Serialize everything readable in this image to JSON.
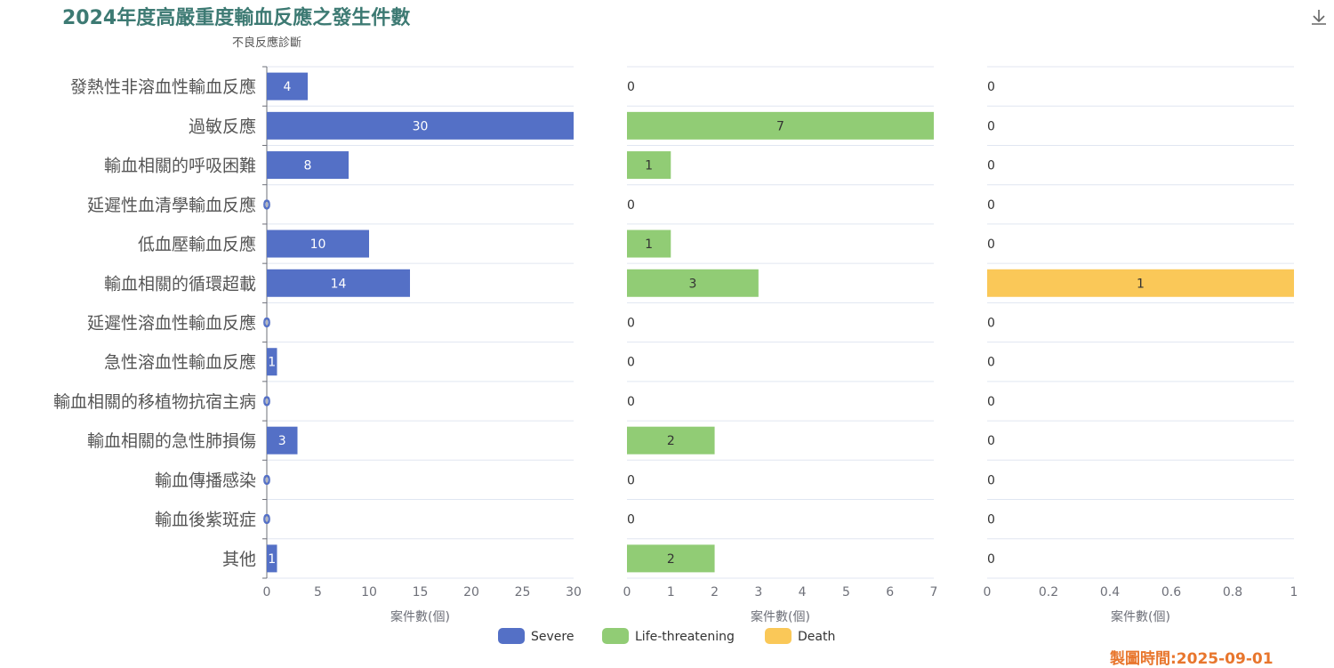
{
  "title": "2024年度高嚴重度輸血反應之發生件數",
  "footer": "製圖時間:2025-09-01",
  "chart_data": {
    "type": "bar",
    "orientation": "horizontal",
    "ylabel": "不良反應診斷",
    "categories": [
      "發熱性非溶血性輸血反應",
      "過敏反應",
      "輸血相關的呼吸困難",
      "延遲性血清學輸血反應",
      "低血壓輸血反應",
      "輸血相關的循環超載",
      "延遲性溶血性輸血反應",
      "急性溶血性輸血反應",
      "輸血相關的移植物抗宿主病",
      "輸血相關的急性肺損傷",
      "輸血傳播感染",
      "輸血後紫斑症",
      "其他"
    ],
    "series": [
      {
        "name": "Severe",
        "color": "#5470c6",
        "values": [
          4,
          30,
          8,
          0,
          10,
          14,
          0,
          1,
          0,
          3,
          0,
          0,
          1
        ],
        "xlim": [
          0,
          30
        ],
        "ticks": [
          "0",
          "5",
          "10",
          "15",
          "20",
          "25",
          "30"
        ],
        "xlabel": "案件數(個)"
      },
      {
        "name": "Life-threatening",
        "color": "#91cc75",
        "values": [
          0,
          7,
          1,
          0,
          1,
          3,
          0,
          0,
          0,
          2,
          0,
          0,
          2
        ],
        "xlim": [
          0,
          7
        ],
        "ticks": [
          "0",
          "1",
          "2",
          "3",
          "4",
          "5",
          "6",
          "7"
        ],
        "xlabel": "案件數(個)"
      },
      {
        "name": "Death",
        "color": "#fac858",
        "values": [
          0,
          0,
          0,
          0,
          0,
          1,
          0,
          0,
          0,
          0,
          0,
          0,
          0
        ],
        "xlim": [
          0,
          1
        ],
        "ticks": [
          "0",
          "0.2",
          "0.4",
          "0.6",
          "0.8",
          "1"
        ],
        "xlabel": "案件數(個)"
      }
    ],
    "legend": "bottom-center",
    "grid": true
  }
}
